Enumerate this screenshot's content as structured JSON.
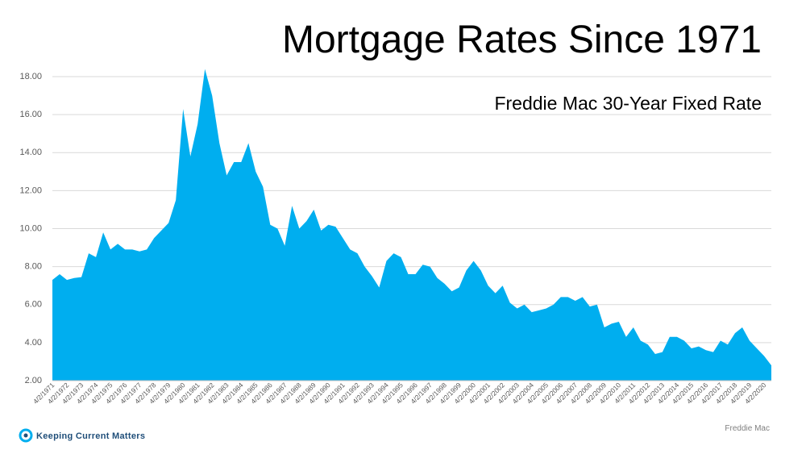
{
  "chart_data": {
    "type": "area",
    "title": "Mortgage Rates Since 1971",
    "subtitle": "Freddie Mac 30-Year Fixed Rate",
    "source": "Freddie Mac",
    "logo": "Keeping Current Matters",
    "color": "#00aeef",
    "grid": true,
    "ylim": [
      2,
      18.4
    ],
    "yticks": [
      {
        "value": 2,
        "label": "2.00"
      },
      {
        "value": 4,
        "label": "4.00"
      },
      {
        "value": 6,
        "label": "6.00"
      },
      {
        "value": 8,
        "label": "8.00"
      },
      {
        "value": 10,
        "label": "10.00"
      },
      {
        "value": 12,
        "label": "12.00"
      },
      {
        "value": 14,
        "label": "14.00"
      },
      {
        "value": 16,
        "label": "16.00"
      },
      {
        "value": 18,
        "label": "18.00"
      }
    ],
    "categories": [
      "4/2/1971",
      null,
      "4/2/1972",
      null,
      "4/2/1973",
      null,
      "4/2/1974",
      null,
      "4/2/1975",
      null,
      "4/2/1976",
      null,
      "4/2/1977",
      null,
      "4/2/1978",
      null,
      "4/2/1979",
      null,
      "4/2/1980",
      null,
      "4/2/1981",
      null,
      "4/2/1982",
      null,
      "4/2/1983",
      null,
      "4/2/1984",
      null,
      "4/2/1985",
      null,
      "4/2/1986",
      null,
      "4/2/1987",
      null,
      "4/2/1988",
      null,
      "4/2/1989",
      null,
      "4/2/1990",
      null,
      "4/2/1991",
      null,
      "4/2/1992",
      null,
      "4/2/1993",
      null,
      "4/2/1994",
      null,
      "4/2/1995",
      null,
      "4/2/1996",
      null,
      "4/2/1997",
      null,
      "4/2/1998",
      null,
      "4/2/1999",
      null,
      "4/2/2000",
      null,
      "4/2/2001",
      null,
      "4/2/2002",
      null,
      "4/2/2003",
      null,
      "4/2/2004",
      null,
      "4/2/2005",
      null,
      "4/2/2006",
      null,
      "4/2/2007",
      null,
      "4/2/2008",
      null,
      "4/2/2009",
      null,
      "4/2/2010",
      null,
      "4/2/2011",
      null,
      "4/2/2012",
      null,
      "4/2/2013",
      null,
      "4/2/2014",
      null,
      "4/2/2015",
      null,
      "4/2/2016",
      null,
      "4/2/2017",
      null,
      "4/2/2018",
      null,
      "4/2/2019",
      null,
      "4/2/2020",
      null
    ],
    "values": [
      7.3,
      7.6,
      7.3,
      7.4,
      7.45,
      8.7,
      8.5,
      9.8,
      8.9,
      9.2,
      8.9,
      8.9,
      8.8,
      8.9,
      9.5,
      9.9,
      10.3,
      11.5,
      16.3,
      13.8,
      15.5,
      18.4,
      17.0,
      14.5,
      12.8,
      13.5,
      13.5,
      14.5,
      13.0,
      12.2,
      10.2,
      10.0,
      9.1,
      11.2,
      10.0,
      10.4,
      11.0,
      9.9,
      10.2,
      10.1,
      9.5,
      8.9,
      8.7,
      8.0,
      7.5,
      6.9,
      8.3,
      8.7,
      8.5,
      7.6,
      7.6,
      8.1,
      8.0,
      7.4,
      7.1,
      6.7,
      6.9,
      7.8,
      8.3,
      7.8,
      7.0,
      6.6,
      7.0,
      6.1,
      5.8,
      6.0,
      5.6,
      5.7,
      5.8,
      6.0,
      6.4,
      6.4,
      6.2,
      6.4,
      5.9,
      6.0,
      4.8,
      5.0,
      5.1,
      4.3,
      4.8,
      4.1,
      3.9,
      3.4,
      3.5,
      4.3,
      4.3,
      4.1,
      3.7,
      3.8,
      3.6,
      3.5,
      4.1,
      3.9,
      4.5,
      4.8,
      4.1,
      3.7,
      3.3,
      2.8
    ]
  }
}
